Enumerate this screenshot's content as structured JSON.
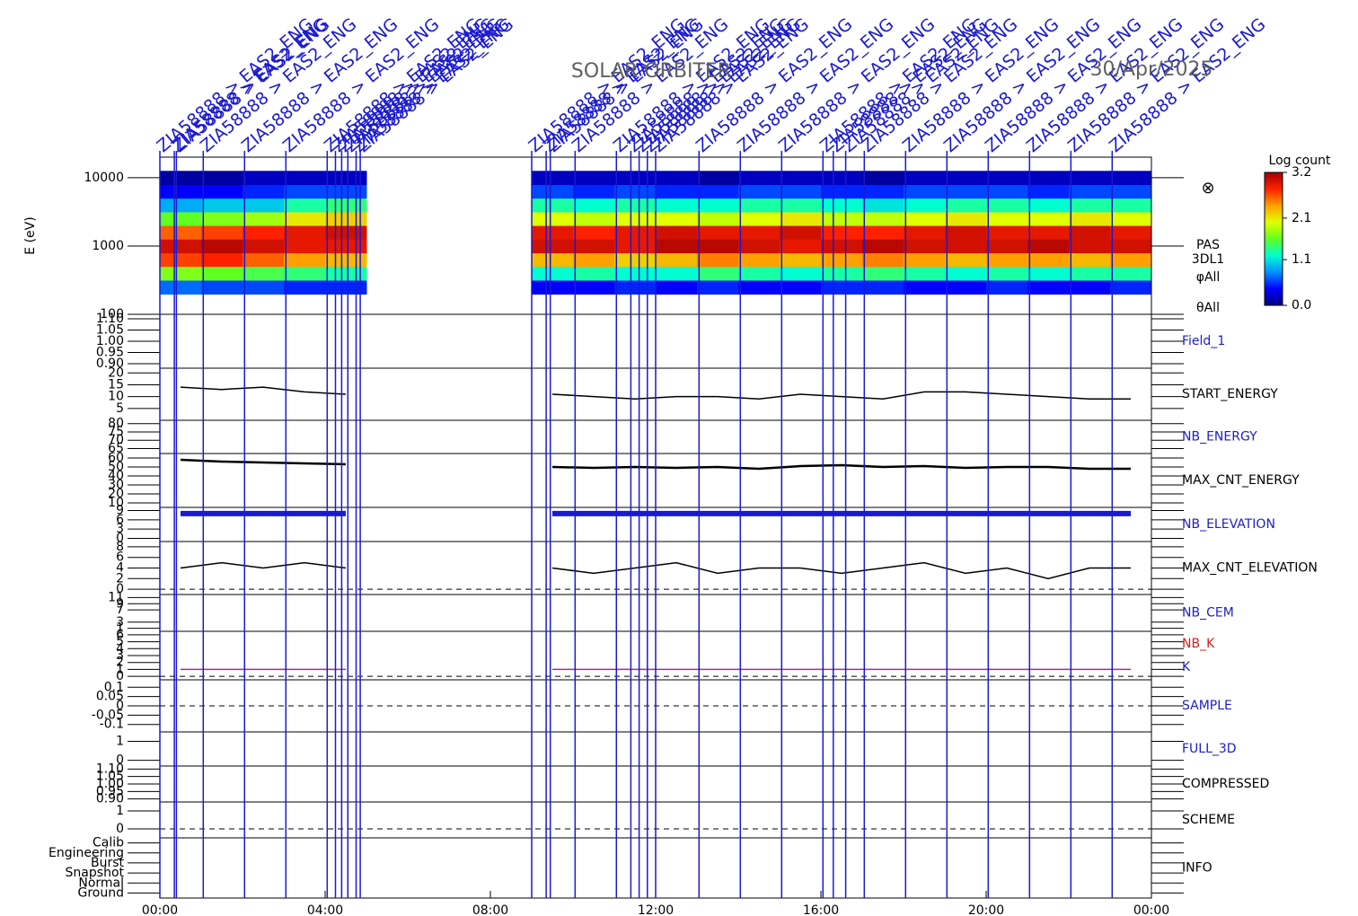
{
  "chart_data": {
    "type": "multipanel",
    "title": "SOLAR ORBITER",
    "date": "30/Apr/2025",
    "xlim": [
      0,
      24
    ],
    "xticks": [
      {
        "value": 0,
        "label": "00:00"
      },
      {
        "value": 4,
        "label": "04:00"
      },
      {
        "value": 8,
        "label": "08:00"
      },
      {
        "value": 12,
        "label": "12:00"
      },
      {
        "value": 16,
        "label": "16:00"
      },
      {
        "value": 20,
        "label": "20:00"
      },
      {
        "value": 24,
        "label": "00:00"
      }
    ],
    "event_color": "#1a1ad0",
    "events": [
      {
        "time": 0.0,
        "label": "ZIA58888 > EAS2_ENG"
      },
      {
        "time": 0.35,
        "label": "ZIA58888 > EAS2_ENG"
      },
      {
        "time": 0.4,
        "label": "ZIA58888 > EAS2_ENG"
      },
      {
        "time": 1.05,
        "label": "ZIA58888 > EAS2_ENG"
      },
      {
        "time": 2.05,
        "label": "ZIA58888 > EAS2_ENG"
      },
      {
        "time": 3.05,
        "label": "ZIA58888 > EAS2_ENG"
      },
      {
        "time": 4.05,
        "label": "ZIA58888 > EAS2_ENG"
      },
      {
        "time": 4.25,
        "label": "ZIA58888 > EAS2_ENG"
      },
      {
        "time": 4.4,
        "label": "ZIA58888 > EAS2_ENG"
      },
      {
        "time": 4.55,
        "label": "ZIA58888 > EAS2_ENG"
      },
      {
        "time": 4.75,
        "label": "ZIA58888 > EAS2_ENG"
      },
      {
        "time": 4.85,
        "label": "ZIA58888 > EAS2_ENG"
      },
      {
        "time": 9.0,
        "label": "ZIA58888 > EAS2_ENG"
      },
      {
        "time": 9.35,
        "label": "ZIA58888 > EAS2_ENG"
      },
      {
        "time": 9.45,
        "label": "ZIA58888 > EAS2_ENG"
      },
      {
        "time": 10.05,
        "label": "ZIA58888 > EAS2_ENG"
      },
      {
        "time": 11.05,
        "label": "ZIA58888 > EAS2_ENG"
      },
      {
        "time": 11.4,
        "label": "ZIA58888 > EAS2_ENG"
      },
      {
        "time": 11.6,
        "label": "ZIA58888 > EAS2_ENG"
      },
      {
        "time": 11.8,
        "label": "ZIA58888 > EAS2_ENG"
      },
      {
        "time": 12.0,
        "label": "ZIA58888 > EAS2_ENG"
      },
      {
        "time": 13.05,
        "label": "ZIA58888 > EAS2_ENG"
      },
      {
        "time": 14.05,
        "label": "ZIA58888 > EAS2_ENG"
      },
      {
        "time": 15.05,
        "label": "ZIA58888 > EAS2_ENG"
      },
      {
        "time": 16.05,
        "label": "ZIA58888 > EAS2_ENG"
      },
      {
        "time": 16.3,
        "label": "ZIA58888 > EAS2_ENG"
      },
      {
        "time": 16.6,
        "label": "ZIA58888 > EAS2_ENG"
      },
      {
        "time": 17.05,
        "label": "ZIA58888 > EAS2_ENG"
      },
      {
        "time": 18.05,
        "label": "ZIA58888 > EAS2_ENG"
      },
      {
        "time": 19.05,
        "label": "ZIA58888 > EAS2_ENG"
      },
      {
        "time": 20.05,
        "label": "ZIA58888 > EAS2_ENG"
      },
      {
        "time": 21.05,
        "label": "ZIA58888 > EAS2_ENG"
      },
      {
        "time": 22.05,
        "label": "ZIA58888 > EAS2_ENG"
      },
      {
        "time": 23.05,
        "label": "ZIA58888 > EAS2_ENG"
      }
    ],
    "x": [
      0.5,
      1.5,
      2.5,
      3.5,
      4.5,
      5.5,
      6.5,
      7.5,
      8.5,
      9.5,
      10.5,
      11.5,
      12.5,
      13.5,
      14.5,
      15.5,
      16.5,
      17.5,
      18.5,
      19.5,
      20.5,
      21.5,
      22.5,
      23.5
    ],
    "colorbar": {
      "title": "Log count",
      "zlim": [
        0,
        3.2
      ],
      "ticks": [
        {
          "value": 0,
          "label": "0.0"
        },
        1.1,
        2.1,
        3.2
      ],
      "colormap": [
        "#000080",
        "#0000ff",
        "#0090ff",
        "#00ffd0",
        "#60ff20",
        "#e0ff00",
        "#ffa000",
        "#ff2000",
        "#a00000"
      ]
    },
    "panels": [
      {
        "type": "spectrogram",
        "ylabel": "E (eV)",
        "log": true,
        "ylim": [
          100,
          20000
        ],
        "yticks": [
          10000,
          1000,
          100
        ],
        "labels": [
          {
            "text": "⊗",
            "color": "#000000"
          },
          {
            "text": "PAS",
            "color": "#000000"
          },
          {
            "text": "3DL1",
            "color": "#000000"
          },
          {
            "text": "φAll",
            "color": "#000000"
          },
          {
            "text": "θAll",
            "color": "#000000"
          }
        ],
        "energies": [
          250,
          400,
          630,
          1000,
          1600,
          2500,
          4000,
          6300,
          10000
        ],
        "values": [
          [
            0.7,
            1.7,
            2.7,
            3.0,
            2.6,
            1.6,
            0.9,
            0.4,
            0.1
          ],
          [
            0.6,
            1.6,
            2.8,
            3.1,
            2.7,
            1.7,
            1.0,
            0.4,
            0.1
          ],
          [
            0.6,
            1.5,
            2.6,
            3.0,
            2.8,
            1.8,
            1.0,
            0.5,
            0.2
          ],
          [
            0.5,
            1.4,
            2.4,
            2.9,
            2.9,
            2.1,
            1.3,
            0.6,
            0.2
          ],
          [
            0.5,
            1.3,
            2.3,
            2.9,
            3.0,
            2.2,
            1.4,
            0.6,
            0.2
          ],
          null,
          null,
          null,
          null,
          [
            0.4,
            1.2,
            2.3,
            3.0,
            2.9,
            2.0,
            1.3,
            0.6,
            0.2
          ],
          [
            0.4,
            1.3,
            2.4,
            3.0,
            2.8,
            1.9,
            1.2,
            0.5,
            0.2
          ],
          [
            0.5,
            1.2,
            2.2,
            2.9,
            2.9,
            2.0,
            1.3,
            0.6,
            0.2
          ],
          [
            0.4,
            1.2,
            2.3,
            3.1,
            3.0,
            2.0,
            1.2,
            0.5,
            0.2
          ],
          [
            0.5,
            1.4,
            2.5,
            3.1,
            2.9,
            1.9,
            1.2,
            0.5,
            0.1
          ],
          [
            0.4,
            1.3,
            2.4,
            3.0,
            2.9,
            2.0,
            1.3,
            0.6,
            0.2
          ],
          [
            0.4,
            1.2,
            2.3,
            2.9,
            3.0,
            2.1,
            1.3,
            0.6,
            0.2
          ],
          [
            0.5,
            1.3,
            2.4,
            3.0,
            2.8,
            1.9,
            1.2,
            0.5,
            0.2
          ],
          [
            0.5,
            1.4,
            2.5,
            3.1,
            2.8,
            1.9,
            1.1,
            0.5,
            0.1
          ],
          [
            0.4,
            1.3,
            2.4,
            3.0,
            2.9,
            2.0,
            1.2,
            0.6,
            0.2
          ],
          [
            0.4,
            1.2,
            2.3,
            3.0,
            3.0,
            2.1,
            1.3,
            0.6,
            0.2
          ],
          [
            0.5,
            1.3,
            2.4,
            3.0,
            2.9,
            2.0,
            1.3,
            0.6,
            0.2
          ],
          [
            0.4,
            1.2,
            2.4,
            3.1,
            2.9,
            2.0,
            1.2,
            0.5,
            0.2
          ],
          [
            0.4,
            1.3,
            2.3,
            3.0,
            3.0,
            2.1,
            1.3,
            0.6,
            0.2
          ],
          [
            0.5,
            1.3,
            2.4,
            3.0,
            2.9,
            2.0,
            1.3,
            0.6,
            0.2
          ]
        ]
      },
      {
        "ylim": [
          0.88,
          1.12
        ],
        "yticks": [
          {
            "value": 1.1,
            "label": "1.10"
          },
          1.05,
          {
            "value": 1,
            "label": "1.00"
          },
          0.95,
          {
            "value": 0.9,
            "label": "0.90"
          }
        ],
        "labels": [
          {
            "text": "Field_1",
            "color": "#2020c0"
          }
        ]
      },
      {
        "ylim": [
          0,
          22
        ],
        "yticks": [
          20,
          15,
          10,
          5
        ],
        "labels": [
          {
            "text": "START_ENERGY",
            "color": "#000000"
          }
        ],
        "series": [
          {
            "color": "#000000",
            "line_width": 1.5,
            "values": [
              14,
              13,
              14,
              12,
              11,
              null,
              null,
              null,
              null,
              11,
              10,
              9,
              10,
              10,
              9,
              11,
              10,
              9,
              12,
              12,
              11,
              10,
              9,
              9
            ]
          }
        ]
      },
      {
        "ylim": [
          62,
          82
        ],
        "yticks": [
          80,
          75,
          70,
          65
        ],
        "labels": [
          {
            "text": "NB_ENERGY",
            "color": "#2020c0"
          }
        ]
      },
      {
        "ylim": [
          5,
          65
        ],
        "yticks": [
          60,
          50,
          40,
          30,
          20,
          10
        ],
        "labels": [
          {
            "text": "MAX_CNT_ENERGY",
            "color": "#000000"
          }
        ],
        "series": [
          {
            "color": "#000000",
            "line_width": 2.5,
            "values": [
              58,
              56,
              55,
              54,
              53,
              null,
              null,
              null,
              null,
              50,
              49,
              50,
              49,
              50,
              48,
              51,
              52,
              50,
              51,
              49,
              50,
              50,
              48,
              48
            ]
          }
        ]
      },
      {
        "ylim": [
          -1,
          10
        ],
        "yticks": [
          9,
          6,
          3,
          0
        ],
        "labels": [
          {
            "text": "NB_ELEVATION",
            "color": "#2020c0"
          }
        ],
        "series": [
          {
            "color": "#1a1ad0",
            "line_width": 6,
            "values": [
              8,
              8,
              8,
              8,
              8,
              null,
              null,
              null,
              null,
              8,
              8,
              8,
              8,
              8,
              8,
              8,
              8,
              8,
              8,
              8,
              8,
              8,
              8,
              8
            ]
          }
        ]
      },
      {
        "ylim": [
          -1,
          9
        ],
        "yticks": [
          8,
          6,
          4,
          2,
          0
        ],
        "zero_line": true,
        "labels": [
          {
            "text": "MAX_CNT_ELEVATION",
            "color": "#000000"
          }
        ],
        "series": [
          {
            "color": "#000000",
            "line_width": 1.5,
            "values": [
              4,
              5,
              4,
              5,
              4,
              null,
              null,
              null,
              null,
              4,
              3,
              4,
              5,
              3,
              4,
              4,
              3,
              4,
              5,
              3,
              4,
              2,
              4,
              4
            ]
          }
        ]
      },
      {
        "ylim": [
          0,
          12
        ],
        "yticks": [
          11,
          9,
          7,
          3,
          1
        ],
        "labels": [
          {
            "text": "NB_CEM",
            "color": "#2020c0"
          }
        ]
      },
      {
        "ylim": [
          -0.5,
          6.5
        ],
        "yticks": [
          6,
          5,
          4,
          3,
          2,
          1,
          0
        ],
        "zero_line": true,
        "labels": [
          {
            "text": "NB_K",
            "color": "#d02020"
          },
          {
            "text": "K",
            "color": "#2020c0"
          }
        ],
        "series": [
          {
            "color": "#a03090",
            "line_width": 1.5,
            "values": [
              1,
              1,
              1,
              1,
              1,
              null,
              null,
              null,
              null,
              1,
              1,
              1,
              1,
              1,
              1,
              1,
              1,
              1,
              1,
              1,
              1,
              1,
              1,
              1
            ]
          }
        ]
      },
      {
        "ylim": [
          -0.14,
          0.14
        ],
        "yticks": [
          0.1,
          0.05,
          0,
          -0.05,
          -0.1
        ],
        "zero_line": true,
        "labels": [
          {
            "text": "SAMPLE",
            "color": "#2020c0"
          }
        ]
      },
      {
        "ylim": [
          -0.3,
          1.5
        ],
        "yticks": [
          1,
          0
        ],
        "labels": [
          {
            "text": "FULL_3D",
            "color": "#2020c0"
          }
        ]
      },
      {
        "ylim": [
          0.88,
          1.12
        ],
        "yticks": [
          {
            "value": 1.1,
            "label": "1.10"
          },
          1.05,
          {
            "value": 1,
            "label": "1.00"
          },
          0.95,
          {
            "value": 0.9,
            "label": "0.90"
          }
        ],
        "labels": [
          {
            "text": "COMPRESSED",
            "color": "#000000"
          }
        ]
      },
      {
        "ylim": [
          -0.5,
          1.5
        ],
        "yticks": [
          1,
          0
        ],
        "zero_line": true,
        "labels": [
          {
            "text": "SCHEME",
            "color": "#000000"
          }
        ]
      },
      {
        "ylim": [
          -0.5,
          5.5
        ],
        "yticks": [
          {
            "value": 5,
            "label": "Calib"
          },
          {
            "value": 4,
            "label": "Engineering"
          },
          {
            "value": 3,
            "label": "Burst"
          },
          {
            "value": 2,
            "label": "Snapshot"
          },
          {
            "value": 1,
            "label": "Normal"
          },
          {
            "value": 0,
            "label": "Ground"
          }
        ],
        "labels": [
          {
            "text": "INFO",
            "color": "#000000"
          }
        ]
      }
    ]
  }
}
